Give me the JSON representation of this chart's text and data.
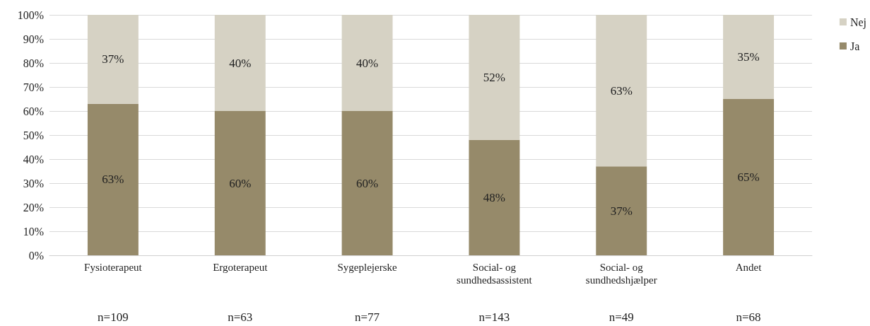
{
  "chart_data": {
    "type": "bar",
    "stacked": true,
    "categories": [
      "Fysioterapeut",
      "Ergoterapeut",
      "Sygeplejerske",
      "Social- og\nsundhedsassistent",
      "Social- og\nsundhedshjælper",
      "Andet"
    ],
    "series": [
      {
        "name": "Ja",
        "color": "#968a6a",
        "values": [
          63,
          60,
          60,
          48,
          37,
          65
        ],
        "value_labels": [
          "63%",
          "60%",
          "60%",
          "48%",
          "37%",
          "65%"
        ]
      },
      {
        "name": "Nej",
        "color": "#d6d2c4",
        "values": [
          37,
          40,
          40,
          52,
          63,
          35
        ],
        "value_labels": [
          "37%",
          "40%",
          "40%",
          "52%",
          "63%",
          "35%"
        ]
      }
    ],
    "ylim": [
      0,
      100
    ],
    "yticks": [
      {
        "value": 0,
        "label": "0%"
      },
      {
        "value": 10,
        "label": "10%"
      },
      {
        "value": 20,
        "label": "20%"
      },
      {
        "value": 30,
        "label": "30%"
      },
      {
        "value": 40,
        "label": "40%"
      },
      {
        "value": 50,
        "label": "50%"
      },
      {
        "value": 60,
        "label": "60%"
      },
      {
        "value": 70,
        "label": "70%"
      },
      {
        "value": 80,
        "label": "80%"
      },
      {
        "value": 90,
        "label": "90%"
      },
      {
        "value": 100,
        "label": "100%"
      }
    ],
    "grid": "y",
    "legend": "top right",
    "annotations": [
      "n=109",
      "n=63",
      "n=77",
      "n=143",
      "n=49",
      "n=68"
    ]
  }
}
